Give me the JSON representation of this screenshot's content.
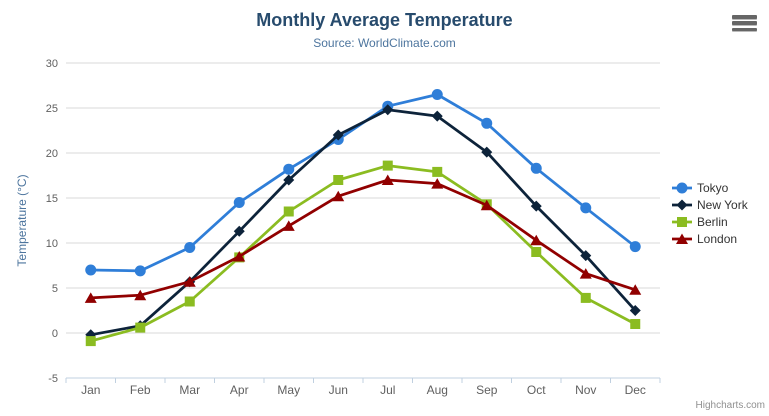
{
  "chart_data": {
    "type": "line",
    "title": "Monthly Average Temperature",
    "subtitle": "Source: WorldClimate.com",
    "title_color": "#274b6d",
    "subtitle_color": "#4d759e",
    "categories": [
      "Jan",
      "Feb",
      "Mar",
      "Apr",
      "May",
      "Jun",
      "Jul",
      "Aug",
      "Sep",
      "Oct",
      "Nov",
      "Dec"
    ],
    "series": [
      {
        "name": "Tokyo",
        "color": "#2f7ed8",
        "marker": "circle",
        "values": [
          7.0,
          6.9,
          9.5,
          14.5,
          18.2,
          21.5,
          25.2,
          26.5,
          23.3,
          18.3,
          13.9,
          9.6
        ]
      },
      {
        "name": "New York",
        "color": "#0d233a",
        "marker": "diamond",
        "values": [
          -0.2,
          0.8,
          5.7,
          11.3,
          17.0,
          22.0,
          24.8,
          24.1,
          20.1,
          14.1,
          8.6,
          2.5
        ]
      },
      {
        "name": "Berlin",
        "color": "#8bbc21",
        "marker": "square",
        "values": [
          -0.9,
          0.6,
          3.5,
          8.4,
          13.5,
          17.0,
          18.6,
          17.9,
          14.3,
          9.0,
          3.9,
          1.0
        ]
      },
      {
        "name": "London",
        "color": "#910000",
        "marker": "triangle",
        "values": [
          3.9,
          4.2,
          5.7,
          8.5,
          11.9,
          15.2,
          17.0,
          16.6,
          14.2,
          10.3,
          6.6,
          4.8
        ]
      }
    ],
    "xlabel": "",
    "ylabel": "Temperature (°C)",
    "ylim": [
      -5,
      30
    ],
    "ytick_step": 5,
    "yticks": [
      -5,
      0,
      5,
      10,
      15,
      20,
      25,
      30
    ],
    "grid": true,
    "legend_position": "right",
    "axis_style": {
      "grid_color": "#d8d8d8",
      "axis_line_color": "#c0d0e0",
      "tick_color": "#c0d0e0",
      "tick_label_color": "#606060",
      "axis_title_color": "#4d759e"
    }
  },
  "header": {
    "context_menu_icon": "hamburger-icon"
  },
  "credits": {
    "label": "Highcharts.com"
  }
}
